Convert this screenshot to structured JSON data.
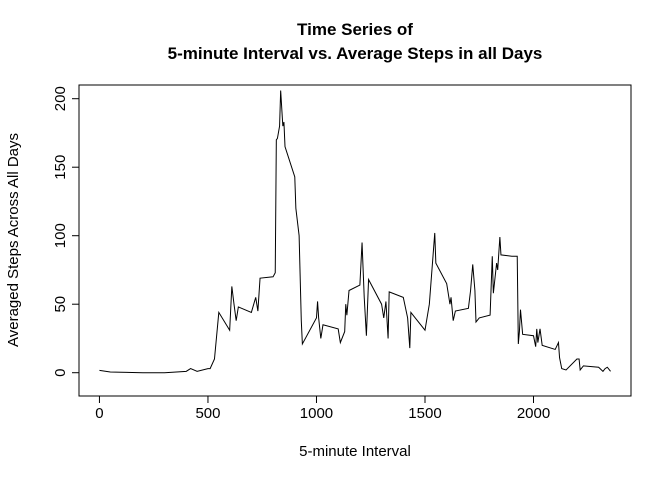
{
  "chart_data": {
    "type": "line",
    "title": [
      "Time Series of",
      "5-minute Interval vs. Average Steps in all Days"
    ],
    "x_label": "5-minute Interval",
    "y_label": "Averaged Steps Across All Days",
    "x": [
      0,
      50,
      100,
      200,
      300,
      400,
      420,
      450,
      500,
      510,
      530,
      550,
      600,
      610,
      620,
      630,
      640,
      700,
      720,
      730,
      740,
      800,
      810,
      815,
      820,
      830,
      835,
      845,
      850,
      855,
      900,
      905,
      920,
      930,
      935,
      1000,
      1005,
      1010,
      1020,
      1030,
      1100,
      1110,
      1130,
      1135,
      1140,
      1150,
      1200,
      1210,
      1220,
      1230,
      1240,
      1300,
      1310,
      1320,
      1330,
      1335,
      1400,
      1420,
      1430,
      1435,
      1450,
      1500,
      1520,
      1545,
      1550,
      1600,
      1615,
      1620,
      1630,
      1640,
      1700,
      1710,
      1720,
      1730,
      1735,
      1750,
      1800,
      1810,
      1815,
      1830,
      1835,
      1845,
      1850,
      1900,
      1925,
      1930,
      1935,
      1940,
      1950,
      2000,
      2010,
      2015,
      2020,
      2030,
      2040,
      2100,
      2115,
      2120,
      2130,
      2150,
      2200,
      2210,
      2215,
      2230,
      2300,
      2320,
      2330,
      2340,
      2355
    ],
    "series": [
      {
        "name": "Average Steps",
        "color": "#000000",
        "values": [
          1.7,
          0.5,
          0.3,
          0,
          0,
          1,
          3,
          1,
          3,
          3,
          10,
          44,
          31,
          63,
          50,
          38,
          48,
          44,
          55,
          45,
          69,
          70,
          73,
          170,
          171,
          180,
          206,
          180,
          183,
          165,
          143,
          120,
          100,
          38,
          21,
          40,
          52,
          40,
          25,
          35,
          32,
          22,
          30,
          50,
          42,
          60,
          64,
          95,
          55,
          27,
          68,
          50,
          40,
          52,
          25,
          59,
          55,
          40,
          18,
          44,
          41,
          31,
          50,
          102,
          80,
          65,
          50,
          55,
          38,
          45,
          47,
          60,
          79,
          60,
          37,
          40,
          42,
          85,
          58,
          80,
          75,
          99,
          86,
          85,
          85,
          21,
          30,
          46,
          28,
          27,
          19,
          32,
          22,
          32,
          20,
          17,
          22,
          11,
          3,
          2,
          10,
          10,
          2,
          5,
          4,
          1,
          3,
          4,
          1
        ]
      }
    ],
    "xlim": [
      -94.2,
      2449.2
    ],
    "ylim": [
      -17,
      210
    ],
    "xticks": [
      0,
      500,
      1000,
      1500,
      2000
    ],
    "yticks": [
      0,
      50,
      100,
      150,
      200
    ]
  }
}
